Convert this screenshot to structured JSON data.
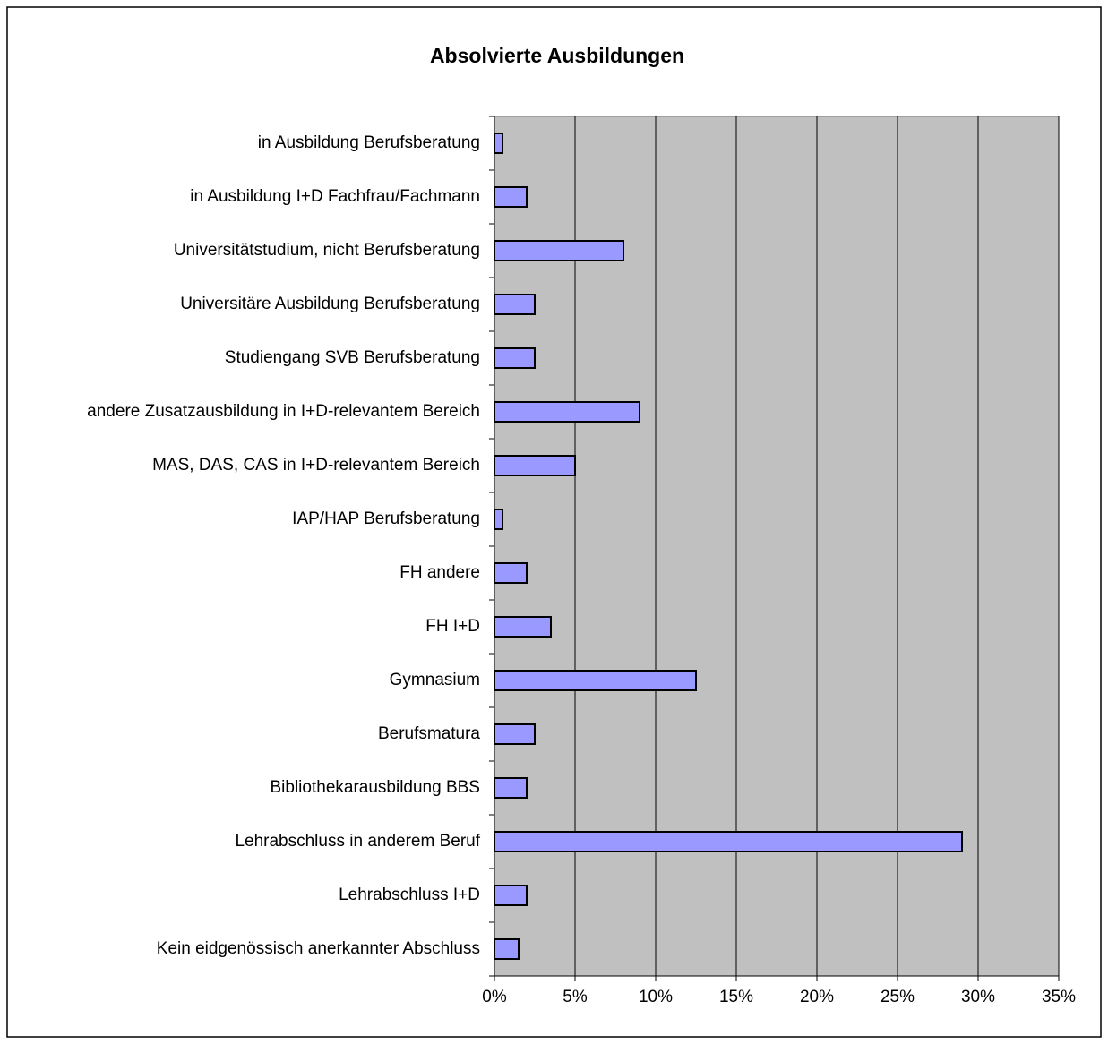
{
  "chart_data": {
    "type": "bar",
    "orientation": "horizontal",
    "title": "Absolvierte Ausbildungen",
    "categories": [
      "in Ausbildung Berufsberatung",
      "in Ausbildung I+D Fachfrau/Fachmann",
      "Universitätstudium, nicht Berufsberatung",
      "Universitäre Ausbildung Berufsberatung",
      "Studiengang SVB Berufsberatung",
      "andere Zusatzausbildung in I+D-relevantem Bereich",
      "MAS, DAS, CAS in I+D-relevantem Bereich",
      "IAP/HAP Berufsberatung",
      "FH andere",
      "FH I+D",
      "Gymnasium",
      "Berufsmatura",
      "Bibliothekarausbildung BBS",
      "Lehrabschluss in anderem Beruf",
      "Lehrabschluss I+D",
      "Kein eidgenössisch anerkannter Abschluss"
    ],
    "values": [
      0.5,
      2,
      8,
      2.5,
      2.5,
      9,
      5,
      0.5,
      2,
      3.5,
      12.5,
      2.5,
      2,
      29,
      2,
      1.5
    ],
    "color": "#9999ff",
    "xlim": [
      0,
      35
    ],
    "xticks": [
      {
        "value": 0,
        "label": "0%"
      },
      {
        "value": 5,
        "label": "5%"
      },
      {
        "value": 10,
        "label": "10%"
      },
      {
        "value": 15,
        "label": "15%"
      },
      {
        "value": 20,
        "label": "20%"
      },
      {
        "value": 25,
        "label": "25%"
      },
      {
        "value": 30,
        "label": "30%"
      },
      {
        "value": 35,
        "label": "35%"
      }
    ],
    "grid": true
  }
}
